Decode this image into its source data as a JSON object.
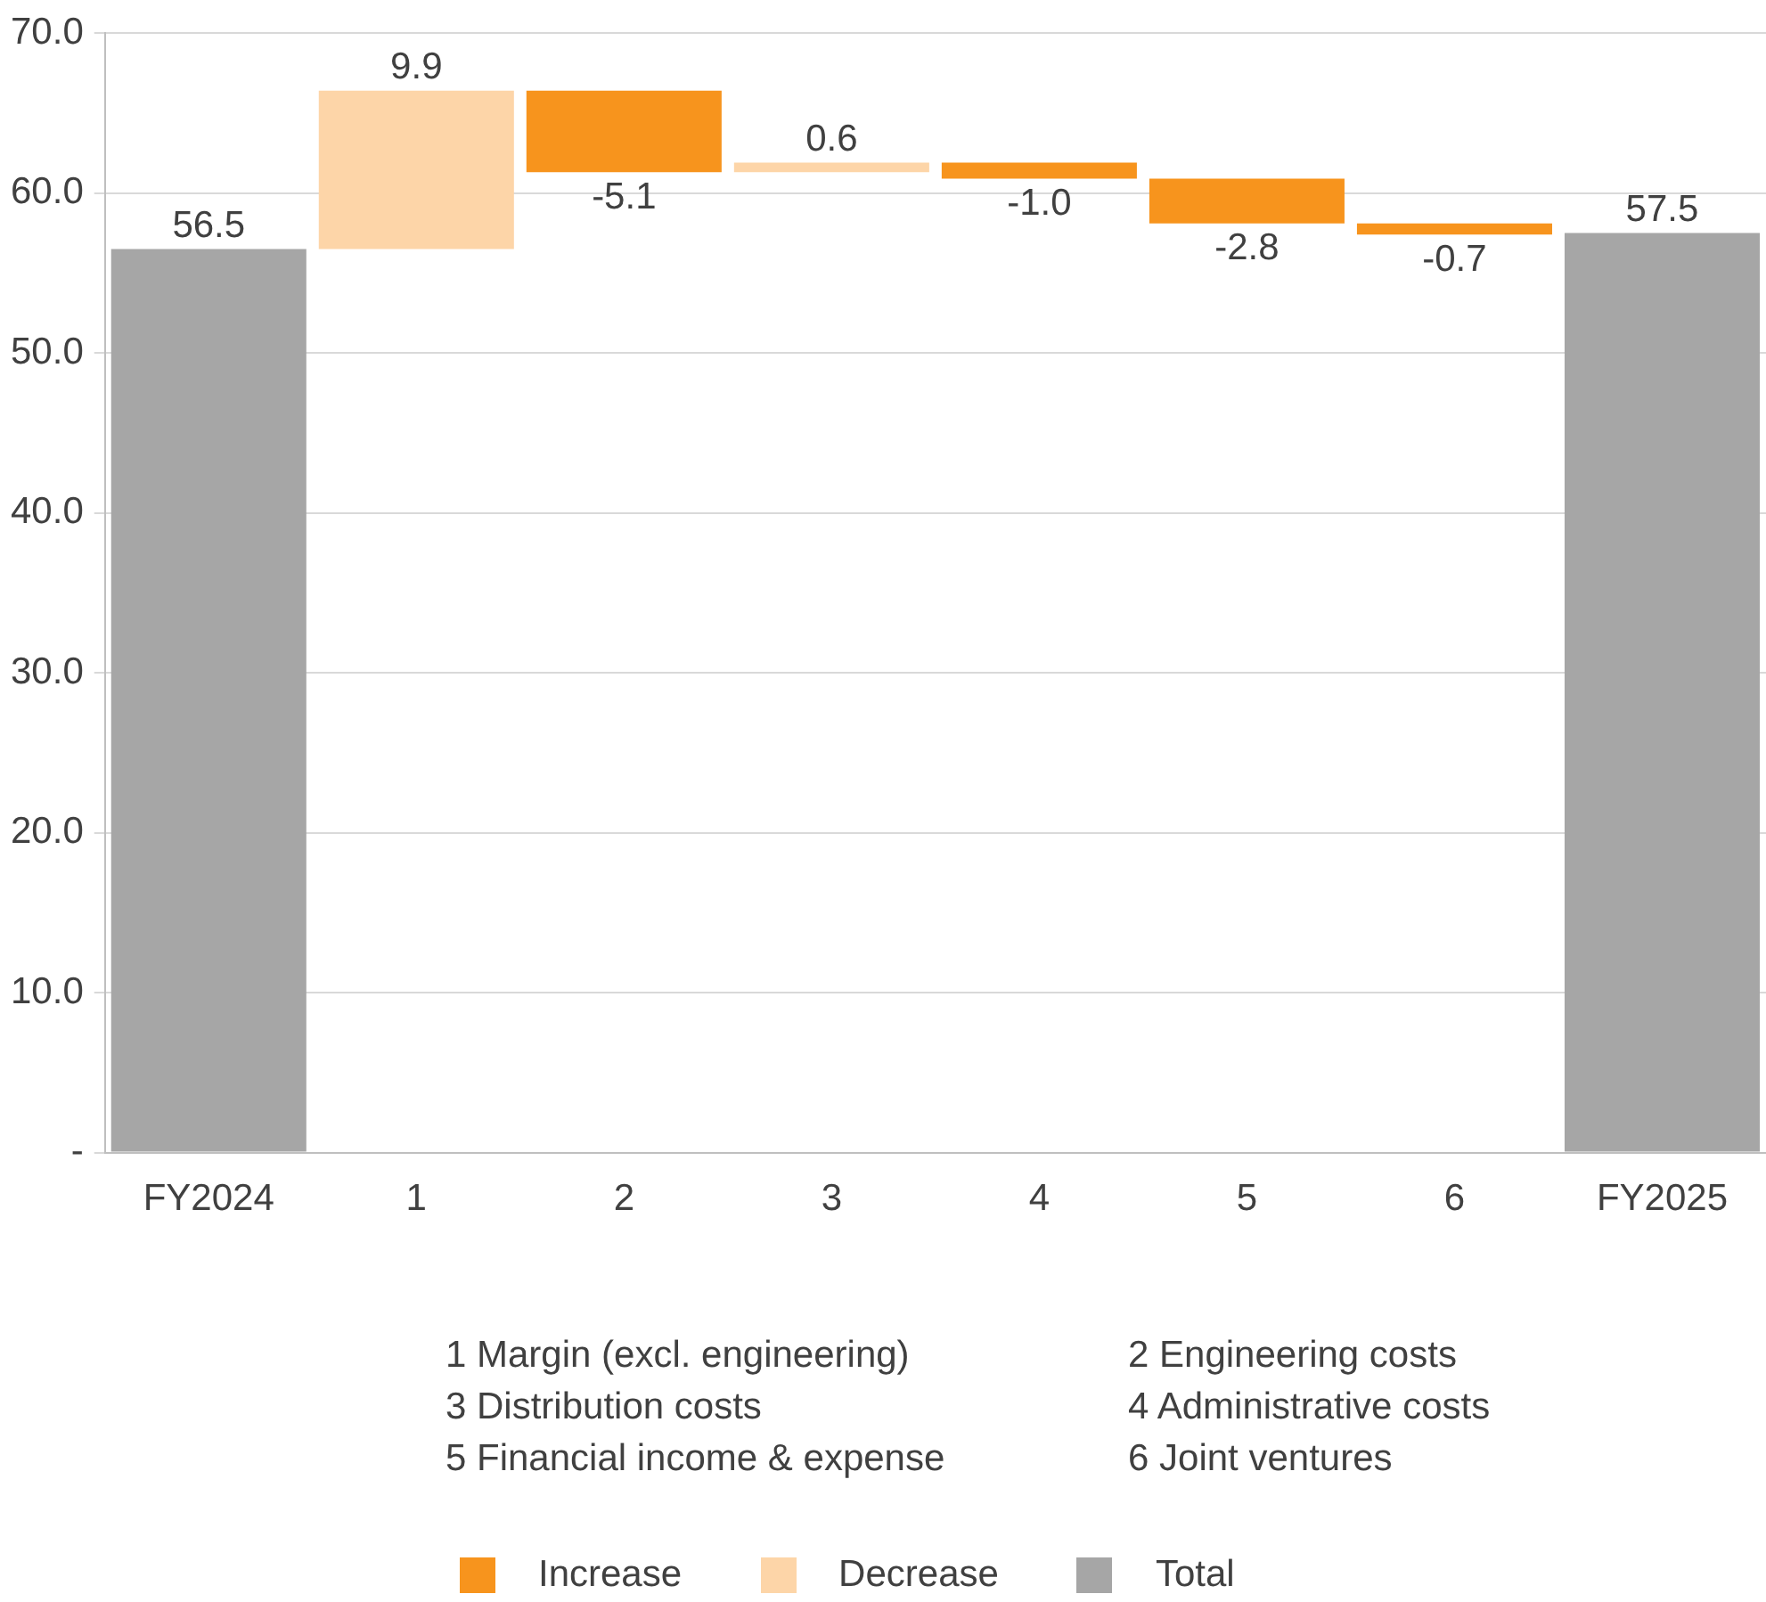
{
  "chart_data": {
    "type": "bar",
    "categories": [
      "FY2024",
      "1",
      "2",
      "3",
      "4",
      "5",
      "6",
      "FY2025"
    ],
    "series": [
      {
        "name": "Increase",
        "color": "#f7941d",
        "base": [
          null,
          null,
          66.4,
          null,
          61.9,
          60.9,
          58.1,
          null
        ],
        "values": [
          null,
          null,
          -5.1,
          null,
          -1.0,
          -2.8,
          -0.7,
          null
        ],
        "value_labels": [
          null,
          null,
          "-5.1",
          null,
          "-1.0",
          "-2.8",
          "-0.7",
          null
        ]
      },
      {
        "name": "Decrease",
        "color": "#fdd5a8",
        "base": [
          null,
          56.5,
          null,
          61.3,
          null,
          null,
          null,
          null
        ],
        "values": [
          null,
          9.9,
          null,
          0.6,
          null,
          null,
          null,
          null
        ],
        "value_labels": [
          null,
          "9.9",
          null,
          "0.6",
          null,
          null,
          null,
          null
        ]
      },
      {
        "name": "Total",
        "color": "#a6a6a6",
        "base": [
          0,
          null,
          null,
          null,
          null,
          null,
          null,
          0
        ],
        "values": [
          56.5,
          null,
          null,
          null,
          null,
          null,
          null,
          57.5
        ],
        "value_labels": [
          "56.5",
          null,
          null,
          null,
          null,
          null,
          null,
          "57.5"
        ]
      }
    ],
    "ylim": [
      0,
      70
    ],
    "yticks": [
      {
        "value": 0,
        "label": "-"
      },
      {
        "value": 10,
        "label": "10.0"
      },
      {
        "value": 20,
        "label": "20.0"
      },
      {
        "value": 30,
        "label": "30.0"
      },
      {
        "value": 40,
        "label": "40.0"
      },
      {
        "value": 50,
        "label": "50.0"
      },
      {
        "value": 60,
        "label": "60.0"
      },
      {
        "value": 70,
        "label": "70.0"
      }
    ],
    "grid": "y",
    "legend": "bottom",
    "annotations": [
      "1 Margin (excl. engineering)",
      "2 Engineering costs",
      "3 Distribution costs",
      "4 Administrative costs",
      "5 Financial income & expense",
      "6 Joint ventures"
    ]
  }
}
